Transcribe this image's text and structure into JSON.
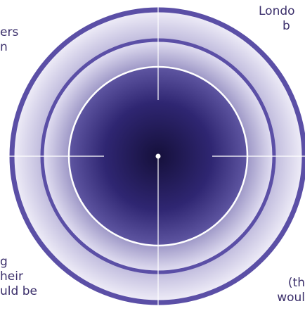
{
  "diagram": {
    "fragments": {
      "top_left": [
        "ers",
        "n"
      ],
      "top_right": [
        "Londo",
        "b"
      ],
      "bottom_left": [
        "g",
        "heir",
        "uld be"
      ],
      "bottom_right": [
        "(th",
        "woul"
      ]
    },
    "colors": {
      "outer_ring_border": "#5b4fa6",
      "mid_ring_border": "#5b4fa6",
      "inner_circle_border": "#ffffff",
      "center_dark": "#1b1547",
      "ring_light": "#ece9f7",
      "crosshair": "#ffffff",
      "center_dot": "#ffffff",
      "text": "#3b2f6b"
    }
  }
}
